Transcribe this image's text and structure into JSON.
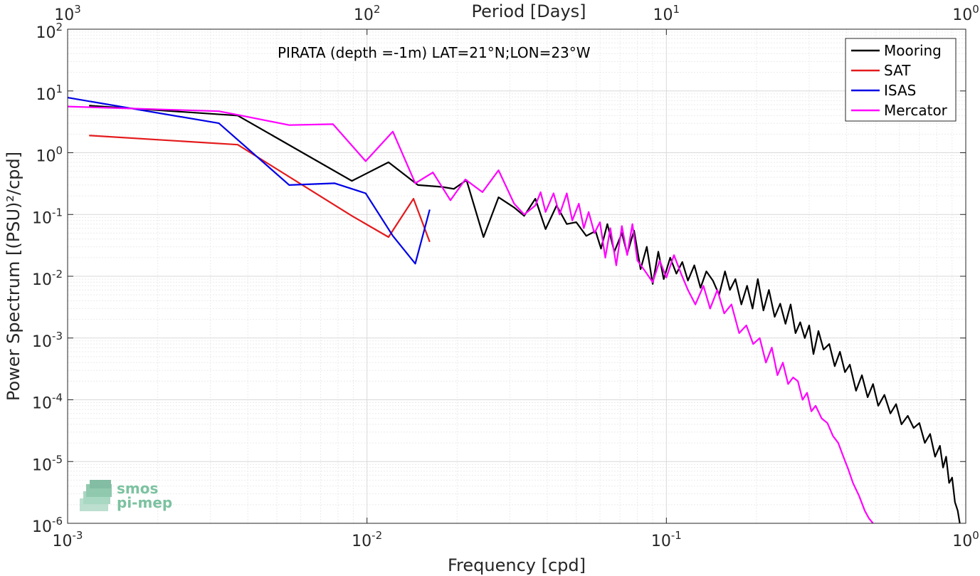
{
  "chart_data": {
    "type": "line",
    "annotation": "PIRATA (depth =-1m) LAT=21°N;LON=23°W",
    "xlabel": "Frequency [cpd]",
    "ylabel": "Power Spectrum [(PSU)²/cpd]",
    "top_xlabel": "Period [Days]",
    "xscale": "log",
    "yscale": "log",
    "xlim": [
      0.001,
      1
    ],
    "ylim": [
      1e-06,
      100
    ],
    "grid": true,
    "legend_position": "top-right",
    "x_ticks": [
      {
        "value": 0.001,
        "base": "10",
        "exp": "-3"
      },
      {
        "value": 0.01,
        "base": "10",
        "exp": "-2"
      },
      {
        "value": 0.1,
        "base": "10",
        "exp": "-1"
      },
      {
        "value": 1,
        "base": "10",
        "exp": "0"
      }
    ],
    "top_ticks": [
      {
        "value": 0.001,
        "base": "10",
        "exp": "3"
      },
      {
        "value": 0.01,
        "base": "10",
        "exp": "2"
      },
      {
        "value": 0.1,
        "base": "10",
        "exp": "1"
      },
      {
        "value": 1,
        "base": "10",
        "exp": "0"
      }
    ],
    "y_ticks": [
      {
        "value": 100,
        "base": "10",
        "exp": "2"
      },
      {
        "value": 10,
        "base": "10",
        "exp": "1"
      },
      {
        "value": 1,
        "base": "10",
        "exp": "0"
      },
      {
        "value": 0.1,
        "base": "10",
        "exp": "-1"
      },
      {
        "value": 0.01,
        "base": "10",
        "exp": "-2"
      },
      {
        "value": 0.001,
        "base": "10",
        "exp": "-3"
      },
      {
        "value": 0.0001,
        "base": "10",
        "exp": "-4"
      },
      {
        "value": 1e-05,
        "base": "10",
        "exp": "-5"
      },
      {
        "value": 1e-06,
        "base": "10",
        "exp": "-6"
      }
    ],
    "series": [
      {
        "name": "Mooring",
        "color": "#000000",
        "points": [
          [
            0.00118,
            5.8
          ],
          [
            0.0037,
            4.0
          ],
          [
            0.0089,
            0.35
          ],
          [
            0.0118,
            0.7
          ],
          [
            0.0148,
            0.3
          ],
          [
            0.0178,
            0.28
          ],
          [
            0.0195,
            0.26
          ],
          [
            0.0215,
            0.36
          ],
          [
            0.0245,
            0.043
          ],
          [
            0.0275,
            0.19
          ],
          [
            0.031,
            0.13
          ],
          [
            0.0335,
            0.095
          ],
          [
            0.0365,
            0.18
          ],
          [
            0.0395,
            0.058
          ],
          [
            0.043,
            0.14
          ],
          [
            0.0465,
            0.07
          ],
          [
            0.05,
            0.075
          ],
          [
            0.054,
            0.045
          ],
          [
            0.058,
            0.054
          ],
          [
            0.0605,
            0.028
          ],
          [
            0.0635,
            0.07
          ],
          [
            0.067,
            0.025
          ],
          [
            0.071,
            0.05
          ],
          [
            0.074,
            0.023
          ],
          [
            0.078,
            0.055
          ],
          [
            0.082,
            0.013
          ],
          [
            0.086,
            0.03
          ],
          [
            0.09,
            0.0075
          ],
          [
            0.094,
            0.025
          ],
          [
            0.098,
            0.009
          ],
          [
            0.103,
            0.02
          ],
          [
            0.108,
            0.011
          ],
          [
            0.113,
            0.017
          ],
          [
            0.118,
            0.0085
          ],
          [
            0.124,
            0.015
          ],
          [
            0.13,
            0.0065
          ],
          [
            0.136,
            0.012
          ],
          [
            0.143,
            0.0085
          ],
          [
            0.15,
            0.005
          ],
          [
            0.157,
            0.012
          ],
          [
            0.163,
            0.006
          ],
          [
            0.17,
            0.009
          ],
          [
            0.178,
            0.0035
          ],
          [
            0.186,
            0.007
          ],
          [
            0.194,
            0.003
          ],
          [
            0.202,
            0.009
          ],
          [
            0.211,
            0.0028
          ],
          [
            0.22,
            0.006
          ],
          [
            0.23,
            0.0022
          ],
          [
            0.24,
            0.0036
          ],
          [
            0.25,
            0.0017
          ],
          [
            0.26,
            0.0035
          ],
          [
            0.27,
            0.0012
          ],
          [
            0.28,
            0.0018
          ],
          [
            0.29,
            0.001
          ],
          [
            0.3,
            0.0016
          ],
          [
            0.31,
            0.00055
          ],
          [
            0.322,
            0.0013
          ],
          [
            0.335,
            0.00065
          ],
          [
            0.35,
            0.0008
          ],
          [
            0.365,
            0.00035
          ],
          [
            0.38,
            0.0006
          ],
          [
            0.395,
            0.00028
          ],
          [
            0.41,
            0.00037
          ],
          [
            0.43,
            0.00014
          ],
          [
            0.45,
            0.00025
          ],
          [
            0.47,
            0.00011
          ],
          [
            0.49,
            0.00018
          ],
          [
            0.51,
            8e-05
          ],
          [
            0.535,
            0.00012
          ],
          [
            0.56,
            6e-05
          ],
          [
            0.585,
            8.5e-05
          ],
          [
            0.61,
            4e-05
          ],
          [
            0.64,
            5.5e-05
          ],
          [
            0.67,
            3.5e-05
          ],
          [
            0.7,
            4.2e-05
          ],
          [
            0.73,
            2e-05
          ],
          [
            0.76,
            2.8e-05
          ],
          [
            0.79,
            1.2e-05
          ],
          [
            0.82,
            1.8e-05
          ],
          [
            0.84,
            8e-06
          ],
          [
            0.86,
            1.2e-05
          ],
          [
            0.88,
            4.5e-06
          ],
          [
            0.9,
            5.5e-06
          ],
          [
            0.92,
            2.2e-06
          ],
          [
            0.94,
            1.6e-06
          ],
          [
            0.955,
            1e-06
          ]
        ]
      },
      {
        "name": "SAT",
        "color": "#e41a1c",
        "points": [
          [
            0.00118,
            1.9
          ],
          [
            0.0037,
            1.35
          ],
          [
            0.0089,
            0.095
          ],
          [
            0.0118,
            0.043
          ],
          [
            0.0143,
            0.18
          ],
          [
            0.0162,
            0.036
          ]
        ]
      },
      {
        "name": "ISAS",
        "color": "#0000e6",
        "points": [
          [
            0.001,
            7.8
          ],
          [
            0.0032,
            3.0
          ],
          [
            0.0055,
            0.3
          ],
          [
            0.0078,
            0.32
          ],
          [
            0.0099,
            0.22
          ],
          [
            0.0122,
            0.045
          ],
          [
            0.0145,
            0.016
          ],
          [
            0.0162,
            0.12
          ]
        ]
      },
      {
        "name": "Mercator",
        "color": "#ff00ff",
        "points": [
          [
            0.001,
            5.6
          ],
          [
            0.0032,
            4.7
          ],
          [
            0.0037,
            4.1
          ],
          [
            0.0055,
            2.8
          ],
          [
            0.0077,
            2.9
          ],
          [
            0.0099,
            0.73
          ],
          [
            0.0122,
            2.2
          ],
          [
            0.0145,
            0.32
          ],
          [
            0.0166,
            0.48
          ],
          [
            0.019,
            0.17
          ],
          [
            0.0213,
            0.37
          ],
          [
            0.0243,
            0.23
          ],
          [
            0.0275,
            0.52
          ],
          [
            0.031,
            0.15
          ],
          [
            0.0335,
            0.1
          ],
          [
            0.0365,
            0.14
          ],
          [
            0.038,
            0.23
          ],
          [
            0.0395,
            0.11
          ],
          [
            0.042,
            0.22
          ],
          [
            0.044,
            0.1
          ],
          [
            0.0465,
            0.22
          ],
          [
            0.0485,
            0.08
          ],
          [
            0.051,
            0.15
          ],
          [
            0.053,
            0.06
          ],
          [
            0.055,
            0.11
          ],
          [
            0.0575,
            0.05
          ],
          [
            0.06,
            0.075
          ],
          [
            0.0625,
            0.02
          ],
          [
            0.065,
            0.06
          ],
          [
            0.068,
            0.015
          ],
          [
            0.071,
            0.065
          ],
          [
            0.074,
            0.022
          ],
          [
            0.077,
            0.07
          ],
          [
            0.08,
            0.018
          ],
          [
            0.085,
            0.012
          ],
          [
            0.09,
            0.008
          ],
          [
            0.095,
            0.018
          ],
          [
            0.1,
            0.0095
          ],
          [
            0.106,
            0.022
          ],
          [
            0.112,
            0.011
          ],
          [
            0.118,
            0.006
          ],
          [
            0.125,
            0.0035
          ],
          [
            0.133,
            0.007
          ],
          [
            0.14,
            0.003
          ],
          [
            0.148,
            0.006
          ],
          [
            0.156,
            0.0025
          ],
          [
            0.165,
            0.0035
          ],
          [
            0.175,
            0.0012
          ],
          [
            0.185,
            0.0016
          ],
          [
            0.195,
            0.0008
          ],
          [
            0.205,
            0.001
          ],
          [
            0.215,
            0.0004
          ],
          [
            0.225,
            0.0007
          ],
          [
            0.235,
            0.00025
          ],
          [
            0.245,
            0.0004
          ],
          [
            0.255,
            0.00018
          ],
          [
            0.265,
            0.00023
          ],
          [
            0.275,
            0.0002
          ],
          [
            0.285,
            0.0001
          ],
          [
            0.295,
            0.00013
          ],
          [
            0.305,
            6.5e-05
          ],
          [
            0.315,
            8e-05
          ],
          [
            0.33,
            5e-05
          ],
          [
            0.345,
            4.2e-05
          ],
          [
            0.36,
            2.6e-05
          ],
          [
            0.375,
            2e-05
          ],
          [
            0.39,
            1.2e-05
          ],
          [
            0.405,
            7.5e-06
          ],
          [
            0.42,
            4.5e-06
          ],
          [
            0.44,
            2.8e-06
          ],
          [
            0.46,
            1.6e-06
          ],
          [
            0.475,
            1.2e-06
          ],
          [
            0.49,
            1e-06
          ]
        ]
      }
    ]
  },
  "logo": {
    "line1": "smos",
    "line2": "pi-mep"
  }
}
